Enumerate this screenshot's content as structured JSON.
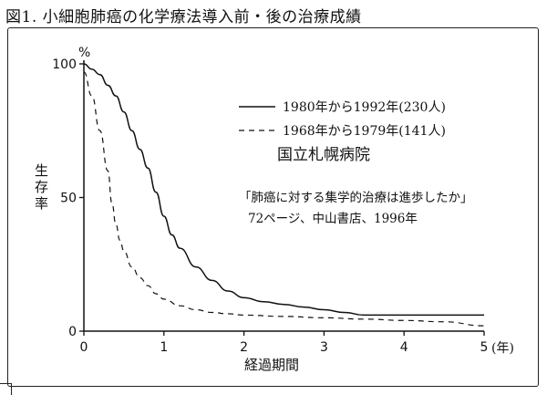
{
  "figure_title": "図1. 小細胞肺癌の化学療法導入前・後の治療成績",
  "chart_data": {
    "type": "line",
    "title": "図1. 小細胞肺癌の化学療法導入前・後の治療成績",
    "xlabel": "経過期間",
    "x_unit": "(年)",
    "ylabel": "生存率",
    "y_unit": "%",
    "xlim": [
      0,
      5
    ],
    "ylim": [
      0,
      100
    ],
    "x_ticks": [
      "0",
      "1",
      "2",
      "3",
      "4",
      "5"
    ],
    "y_ticks": [
      "0",
      "50",
      "100"
    ],
    "grid": false,
    "legend_position": "top-right",
    "series": [
      {
        "name": "1980年から1992年(230人)",
        "style": "solid",
        "x": [
          0,
          0.1,
          0.2,
          0.3,
          0.4,
          0.5,
          0.6,
          0.7,
          0.8,
          0.9,
          1.0,
          1.1,
          1.2,
          1.4,
          1.6,
          1.8,
          2.0,
          2.25,
          2.5,
          2.75,
          3.0,
          3.25,
          3.5,
          4.0,
          4.5,
          5.0
        ],
        "y": [
          100,
          98,
          96,
          92,
          88,
          82,
          75,
          68,
          61,
          52,
          43,
          36,
          31,
          24,
          19,
          15,
          12.5,
          11,
          10,
          9,
          8,
          7,
          6,
          6,
          6,
          6
        ]
      },
      {
        "name": "1968年から1979年(141人)",
        "style": "dashed",
        "x": [
          0,
          0.1,
          0.2,
          0.3,
          0.35,
          0.4,
          0.45,
          0.5,
          0.6,
          0.7,
          0.8,
          0.9,
          1.0,
          1.2,
          1.4,
          1.6,
          1.8,
          2.0,
          2.5,
          3.0,
          3.5,
          4.0,
          4.5,
          5.0
        ],
        "y": [
          97,
          88,
          75,
          60,
          48,
          40,
          34,
          30,
          24,
          20,
          17,
          14,
          12,
          9.5,
          8,
          7,
          6.5,
          6,
          5.5,
          5,
          4.5,
          4,
          3.5,
          2
        ]
      }
    ],
    "annotations": [
      "国立札幌病院",
      "「肺癌に対する集学的治療は進歩したか」",
      "72ページ、中山書店、1996年"
    ]
  }
}
